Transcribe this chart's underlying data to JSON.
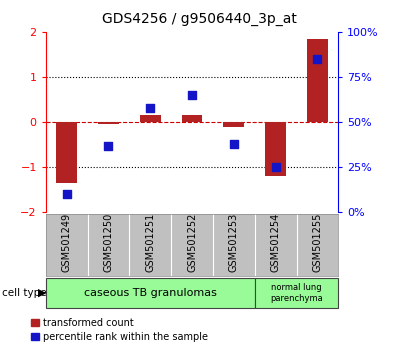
{
  "title": "GDS4256 / g9506440_3p_at",
  "samples": [
    "GSM501249",
    "GSM501250",
    "GSM501251",
    "GSM501252",
    "GSM501253",
    "GSM501254",
    "GSM501255"
  ],
  "transformed_count": [
    -1.35,
    -0.05,
    0.15,
    0.15,
    -0.1,
    -1.2,
    1.85
  ],
  "percentile_rank": [
    10,
    37,
    58,
    65,
    38,
    25,
    85
  ],
  "ylim_left": [
    -2,
    2
  ],
  "ylim_right": [
    0,
    100
  ],
  "yticks_left": [
    -2,
    -1,
    0,
    1,
    2
  ],
  "yticks_right": [
    0,
    25,
    50,
    75,
    100
  ],
  "ytick_labels_right": [
    "0%",
    "25%",
    "50%",
    "75%",
    "100%"
  ],
  "bar_color": "#B22222",
  "dot_color": "#1515C8",
  "hline_color": "#CC0000",
  "dotted_line_color": "#000000",
  "group1_label": "caseous TB granulomas",
  "group2_label": "normal lung\nparenchyma",
  "group1_indices": [
    0,
    1,
    2,
    3,
    4
  ],
  "group2_indices": [
    5,
    6
  ],
  "cell_type_label": "cell type",
  "legend_bar_label": "transformed count",
  "legend_dot_label": "percentile rank within the sample",
  "bar_width": 0.5,
  "dot_size": 30,
  "background_color": "#FFFFFF",
  "plot_bg": "#FFFFFF",
  "tick_label_area_bg": "#C0C0C0",
  "group1_bg": "#98FB98",
  "group2_bg": "#98FB98",
  "title_fontsize": 10,
  "axis_fontsize": 8,
  "label_fontsize": 7,
  "group_fontsize": 8,
  "legend_fontsize": 7
}
